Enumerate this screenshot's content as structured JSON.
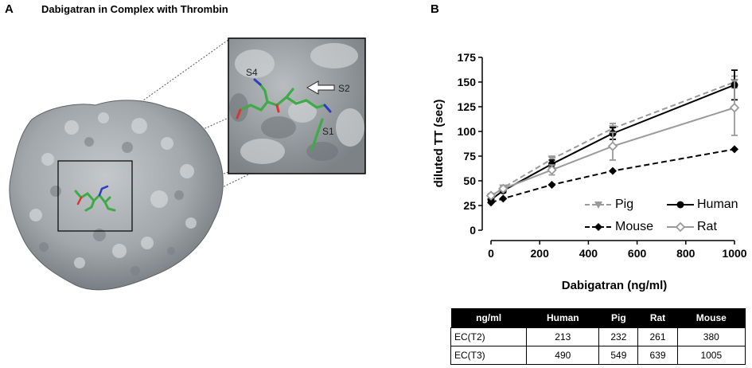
{
  "panel_a": {
    "letter": "A",
    "title": "Dabigatran  in Complex with Thrombin",
    "labels": {
      "s4": "S4",
      "s2": "S2",
      "s1": "S1"
    }
  },
  "panel_b": {
    "letter": "B"
  },
  "colors": {
    "human": "#000000",
    "pig": "#9a9a9a",
    "rat": "#9a9a9a",
    "mouse": "#000000",
    "protein_surface": "#a7acb0",
    "ligand_green": "#3faa47"
  },
  "chart_data": {
    "type": "line",
    "title": "",
    "xlabel": "Dabigatran (ng/ml)",
    "ylabel": "diluted TT (sec)",
    "xlim": [
      0,
      1000
    ],
    "ylim": [
      0,
      175
    ],
    "x_ticks": [
      "0",
      "200",
      "400",
      "600",
      "800",
      "1000"
    ],
    "y_ticks": [
      "0",
      "25",
      "50",
      "75",
      "100",
      "125",
      "150",
      "175"
    ],
    "grid": false,
    "legend_position": "middle",
    "series": [
      {
        "name": "Pig",
        "style": "dashed",
        "marker": "triangle-down",
        "color": "#9a9a9a",
        "x": [
          0,
          50,
          250,
          500,
          1000
        ],
        "y": [
          34,
          43,
          72,
          103,
          150
        ],
        "err": [
          2,
          2,
          3,
          5,
          6
        ]
      },
      {
        "name": "Human",
        "style": "solid",
        "marker": "circle",
        "color": "#000000",
        "x": [
          0,
          50,
          250,
          500,
          1000
        ],
        "y": [
          31,
          40,
          67,
          98,
          147
        ],
        "err": [
          2,
          2,
          4,
          6,
          15
        ]
      },
      {
        "name": "Mouse",
        "style": "dashed",
        "marker": "diamond",
        "color": "#000000",
        "x": [
          0,
          50,
          250,
          500,
          1000
        ],
        "y": [
          28,
          32,
          46,
          60,
          82
        ],
        "err": [
          0,
          0,
          0,
          0,
          0
        ]
      },
      {
        "name": "Rat",
        "style": "solid",
        "marker": "diamond-open",
        "color": "#9a9a9a",
        "x": [
          0,
          50,
          250,
          500,
          1000
        ],
        "y": [
          35,
          42,
          61,
          85,
          124
        ],
        "err": [
          2,
          2,
          5,
          14,
          28
        ]
      }
    ]
  },
  "table": {
    "headers": [
      "ng/ml",
      "Human",
      "Pig",
      "Rat",
      "Mouse"
    ],
    "rows": [
      [
        "EC(T2)",
        "213",
        "232",
        "261",
        "380"
      ],
      [
        "EC(T3)",
        "490",
        "549",
        "639",
        "1005"
      ]
    ]
  }
}
